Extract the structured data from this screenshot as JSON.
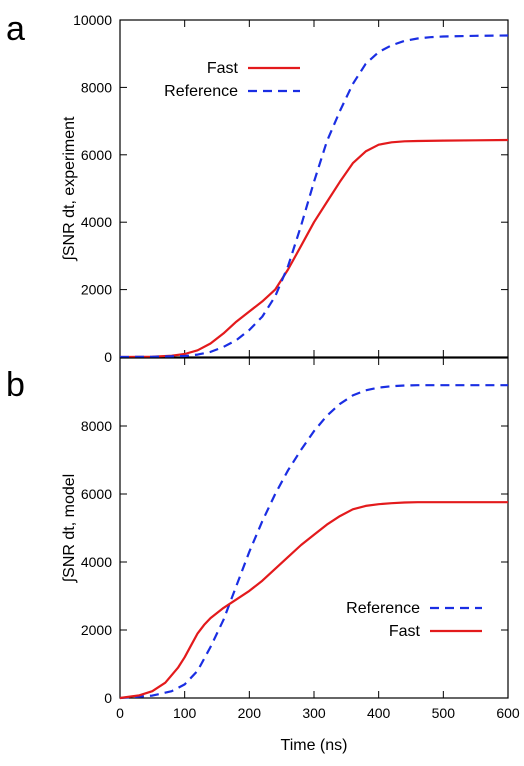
{
  "chart_data": [
    {
      "type": "line",
      "panel_label": "a",
      "ylabel": "∫SNR dt, experiment",
      "xlim": [
        0,
        600
      ],
      "ylim": [
        0,
        10000
      ],
      "xticks": [],
      "yticks": [
        "0",
        "2000",
        "4000",
        "6000",
        "8000",
        "10000"
      ],
      "legend_position": "top-left",
      "series": [
        {
          "name": "Fast",
          "color": "#e31a1c",
          "style": "solid",
          "x": [
            0,
            50,
            80,
            100,
            120,
            140,
            160,
            180,
            200,
            220,
            240,
            260,
            280,
            300,
            320,
            340,
            360,
            380,
            400,
            420,
            440,
            460,
            500,
            550,
            600
          ],
          "y": [
            0,
            10,
            40,
            90,
            200,
            400,
            700,
            1050,
            1350,
            1650,
            2000,
            2600,
            3300,
            4000,
            4600,
            5200,
            5750,
            6100,
            6300,
            6370,
            6400,
            6410,
            6420,
            6430,
            6440
          ]
        },
        {
          "name": "Reference",
          "color": "#1a2ee3",
          "style": "dashed",
          "x": [
            0,
            50,
            100,
            120,
            140,
            160,
            180,
            200,
            220,
            240,
            260,
            280,
            300,
            320,
            340,
            360,
            380,
            400,
            420,
            440,
            460,
            480,
            500,
            550,
            600
          ],
          "y": [
            0,
            5,
            30,
            70,
            150,
            300,
            500,
            800,
            1200,
            1800,
            2700,
            3900,
            5200,
            6400,
            7300,
            8100,
            8700,
            9050,
            9250,
            9380,
            9450,
            9490,
            9510,
            9530,
            9540
          ]
        }
      ]
    },
    {
      "type": "line",
      "panel_label": "b",
      "ylabel": "∫SNR dt, model",
      "xlabel": "Time (ns)",
      "xlim": [
        0,
        600
      ],
      "ylim": [
        0,
        10000
      ],
      "xticks": [
        "0",
        "100",
        "200",
        "300",
        "400",
        "500",
        "600"
      ],
      "yticks": [
        "0",
        "2000",
        "4000",
        "6000",
        "8000"
      ],
      "legend_position": "bottom-right",
      "series": [
        {
          "name": "Reference",
          "color": "#1a2ee3",
          "style": "dashed",
          "x": [
            0,
            50,
            80,
            100,
            120,
            140,
            160,
            180,
            200,
            220,
            240,
            260,
            280,
            300,
            320,
            340,
            360,
            380,
            400,
            420,
            440,
            460,
            480,
            500,
            550,
            600
          ],
          "y": [
            0,
            70,
            200,
            400,
            800,
            1500,
            2300,
            3300,
            4300,
            5200,
            6000,
            6700,
            7300,
            7850,
            8300,
            8650,
            8900,
            9050,
            9130,
            9170,
            9190,
            9200,
            9200,
            9200,
            9200,
            9200
          ]
        },
        {
          "name": "Fast",
          "color": "#e31a1c",
          "style": "solid",
          "x": [
            0,
            30,
            50,
            70,
            90,
            100,
            110,
            120,
            130,
            140,
            160,
            180,
            200,
            220,
            240,
            260,
            280,
            300,
            320,
            340,
            360,
            380,
            400,
            420,
            440,
            460,
            500,
            550,
            600
          ],
          "y": [
            0,
            80,
            200,
            450,
            900,
            1200,
            1550,
            1900,
            2150,
            2350,
            2650,
            2900,
            3150,
            3450,
            3800,
            4150,
            4500,
            4800,
            5100,
            5350,
            5550,
            5650,
            5700,
            5730,
            5750,
            5760,
            5760,
            5760,
            5760
          ]
        }
      ]
    }
  ]
}
